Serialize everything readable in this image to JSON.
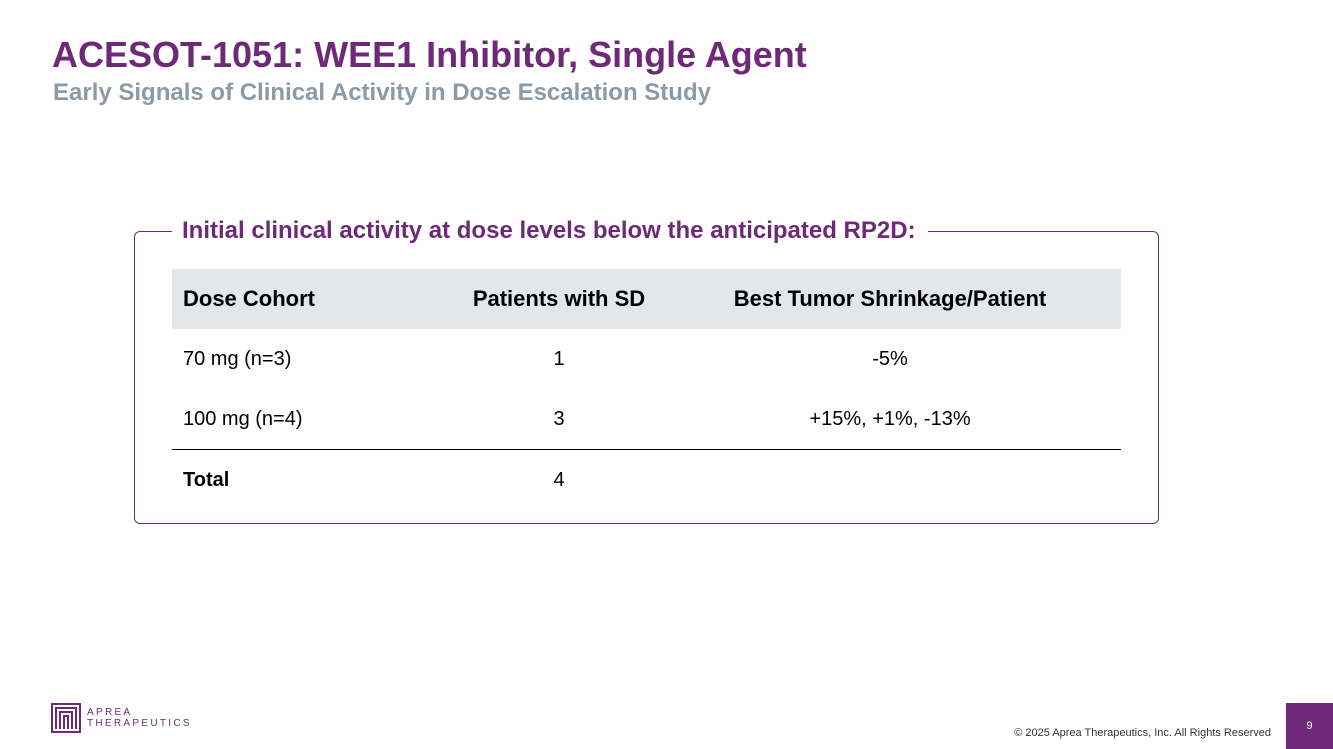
{
  "slide": {
    "title": "ACESOT-1051: WEE1 Inhibitor, Single Agent",
    "subtitle": "Early Signals of Clinical Activity in Dose Escalation Study"
  },
  "panel": {
    "heading": "Initial clinical activity at dose levels below the anticipated RP2D:",
    "table": {
      "headers": [
        "Dose Cohort",
        "Patients with SD",
        "Best Tumor Shrinkage/Patient"
      ],
      "rows": [
        [
          "70 mg (n=3)",
          "1",
          "-5%"
        ],
        [
          "100 mg (n=4)",
          "3",
          "+15%, +1%, -13%"
        ]
      ],
      "total": [
        "Total",
        "4",
        ""
      ]
    }
  },
  "footer": {
    "logo_line1": "APREA",
    "logo_line2": "THERAPEUTICS",
    "copyright": "© 2025 Aprea Therapeutics, Inc. All Rights Reserved",
    "page_number": "9"
  },
  "colors": {
    "brand_purple": "#6e2a78",
    "subtitle_gray": "#8a9aa6",
    "header_row_bg": "#e4e7ea"
  }
}
